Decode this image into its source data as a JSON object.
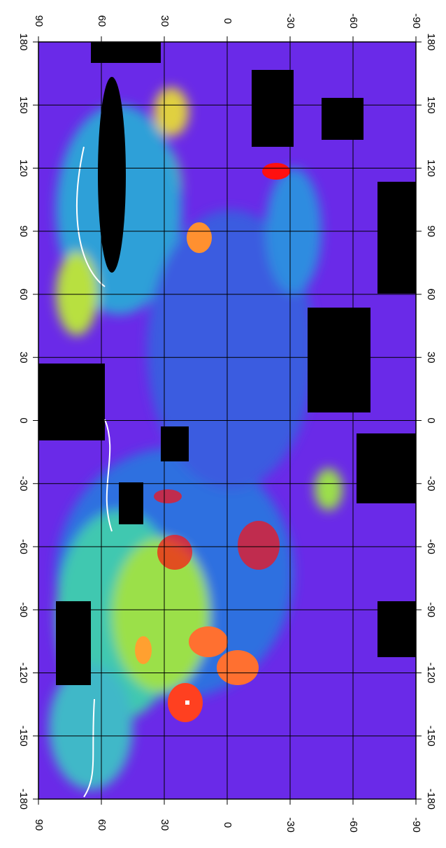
{
  "map": {
    "lat_ticks": [
      90,
      60,
      30,
      0,
      -30,
      -60,
      -90
    ],
    "lon_ticks": [
      180,
      150,
      120,
      90,
      60,
      30,
      0,
      -30,
      -60,
      -90,
      -120,
      -150,
      -180
    ]
  }
}
